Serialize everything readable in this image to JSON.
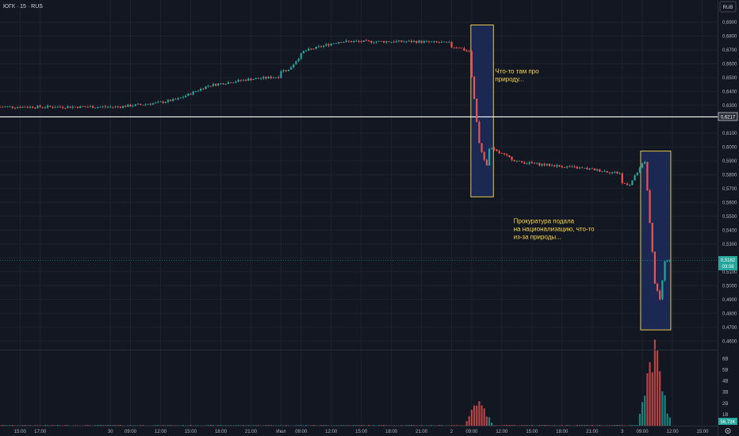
{
  "header": {
    "symbol_line": "ЮГК · 15 · RUS",
    "currency": "RUB"
  },
  "price_scale": {
    "ticks": [
      "0,6900",
      "0,6800",
      "0,6700",
      "0,6600",
      "0,6500",
      "0,6400",
      "0,6300",
      "0,6100",
      "0,6000",
      "0,5900",
      "0,5800",
      "0,5700",
      "0,5600",
      "0,5500",
      "0,5400",
      "0,5300",
      "0,5200",
      "0,5100",
      "0,5000",
      "0,4900",
      "0,4800",
      "0,4700",
      "0,4600"
    ],
    "horizontal_line_label": "0,6217",
    "last_price_label": "0,5182",
    "countdown_label": "03:08"
  },
  "volume_scale": {
    "ticks": [
      "6B",
      "5B",
      "4B",
      "3B",
      "2B",
      "1B"
    ],
    "current_label": "56,73K"
  },
  "time_axis": [
    "15:00",
    "17:00",
    "30",
    "09:00",
    "12:00",
    "15:00",
    "18:00",
    "21:00",
    "Июл",
    "09:00",
    "12:00",
    "15:00",
    "18:00",
    "21:00",
    "2",
    "09:00",
    "12:00",
    "15:00",
    "18:00",
    "21:00",
    "3",
    "09:00",
    "12:00",
    "15:00"
  ],
  "annotations": [
    {
      "lines": [
        "Что-то там про",
        "природу..."
      ]
    },
    {
      "lines": [
        "Прокуратура подала",
        "на национализацию, что-то",
        "из-за природы..."
      ]
    }
  ],
  "colors": {
    "up": "#26a69a",
    "down": "#ef5350",
    "background": "#131722",
    "annotation_text": "#f5d547",
    "box_fill": "#1c2c5a",
    "box_border": "#e6c74c",
    "hline": "#ffffff",
    "last_price": "#26a69a"
  },
  "chart_data": {
    "type": "candlestick",
    "title": "",
    "ylim": [
      0.4555,
      0.7003
    ],
    "horizontal_line": 0.6217,
    "last_price": 0.5182,
    "key_closes": [
      {
        "t": "30 08:00",
        "close": 0.6289
      },
      {
        "t": "30 12:00",
        "close": 0.6318
      },
      {
        "t": "30 14:00",
        "close": 0.6345
      },
      {
        "t": "30 17:00",
        "close": 0.6443
      },
      {
        "t": "30 21:00",
        "close": 0.6488
      },
      {
        "t": "Июл 08:00",
        "close": 0.6555
      },
      {
        "t": "Июл 09:30",
        "close": 0.669
      },
      {
        "t": "Июл 13:00",
        "close": 0.676
      },
      {
        "t": "Июл 21:00",
        "close": 0.676
      },
      {
        "t": "2 08:00",
        "close": 0.672
      },
      {
        "t": "2 09:00",
        "close": 0.668
      },
      {
        "t": "2 10:00",
        "close": 0.602
      },
      {
        "t": "2 10:45",
        "close": 0.586
      },
      {
        "t": "2 11:00",
        "close": 0.599
      },
      {
        "t": "2 14:00",
        "close": 0.589
      },
      {
        "t": "2 21:00",
        "close": 0.584
      },
      {
        "t": "3 08:00",
        "close": 0.573
      },
      {
        "t": "3 09:30",
        "close": 0.59
      },
      {
        "t": "3 10:30",
        "close": 0.502
      },
      {
        "t": "3 11:00",
        "close": 0.49
      },
      {
        "t": "3 11:30",
        "close": 0.5182
      }
    ],
    "volume_peaks": [
      {
        "t": "2 09:45",
        "volume": 2600000000.0
      },
      {
        "t": "3 10:00",
        "volume": 6300000000.0
      },
      {
        "t": "3 10:45",
        "volume": 3200000000.0
      }
    ]
  }
}
